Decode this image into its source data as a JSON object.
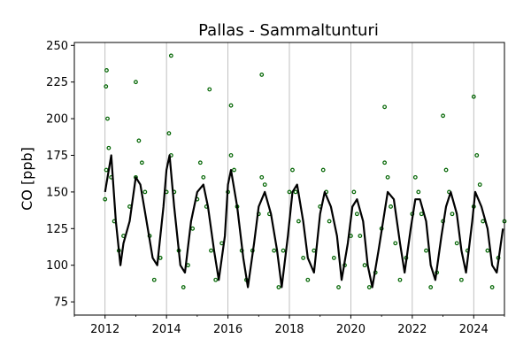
{
  "chart_data": {
    "type": "scatter",
    "title": "Pallas - Sammaltunturi",
    "xlabel": "",
    "ylabel": "CO [ppb]",
    "xlim": [
      2011.0,
      2025.0
    ],
    "ylim": [
      66,
      252
    ],
    "x_ticks": [
      2012,
      2014,
      2016,
      2018,
      2020,
      2022,
      2024
    ],
    "y_ticks": [
      75,
      100,
      125,
      150,
      175,
      200,
      225,
      250
    ],
    "grid": "vertical lines at x ticks",
    "colors": {
      "points": "#006400",
      "fit_line": "#000000",
      "grid": "#b0b0b0"
    },
    "series": [
      {
        "style": "open-circle markers",
        "x": [
          2012.0,
          2012.04,
          2012.08,
          2012.12,
          2012.2,
          2012.3,
          2012.45,
          2012.6,
          2012.8,
          2013.0,
          2013.1,
          2013.2,
          2013.3,
          2013.45,
          2013.6,
          2013.8,
          2014.0,
          2014.08,
          2014.15,
          2014.25,
          2014.4,
          2014.55,
          2014.7,
          2014.85,
          2015.0,
          2015.1,
          2015.2,
          2015.3,
          2015.45,
          2015.6,
          2015.8,
          2016.0,
          2016.1,
          2016.2,
          2016.3,
          2016.45,
          2016.6,
          2016.8,
          2017.0,
          2017.1,
          2017.2,
          2017.35,
          2017.5,
          2017.65,
          2017.8,
          2018.0,
          2018.1,
          2018.2,
          2018.3,
          2018.45,
          2018.6,
          2018.8,
          2019.0,
          2019.1,
          2019.2,
          2019.3,
          2019.45,
          2019.6,
          2019.8,
          2020.0,
          2020.1,
          2020.2,
          2020.3,
          2020.45,
          2020.6,
          2020.8,
          2021.0,
          2021.1,
          2021.2,
          2021.3,
          2021.45,
          2021.6,
          2021.8,
          2022.0,
          2022.1,
          2022.2,
          2022.3,
          2022.45,
          2022.6,
          2022.8,
          2023.0,
          2023.1,
          2023.2,
          2023.3,
          2023.45,
          2023.6,
          2023.8,
          2024.0,
          2024.1,
          2024.2,
          2024.3,
          2024.45,
          2024.6,
          2024.8,
          2025.0,
          2012.05,
          2014.15,
          2017.1,
          2013.0,
          2015.4,
          2021.1,
          2024.0,
          2012.03,
          2016.1,
          2023.0
        ],
        "y": [
          145,
          165,
          200,
          180,
          160,
          130,
          110,
          120,
          140,
          160,
          185,
          170,
          150,
          120,
          90,
          105,
          150,
          190,
          175,
          150,
          110,
          85,
          100,
          125,
          145,
          170,
          160,
          140,
          110,
          90,
          115,
          150,
          175,
          165,
          140,
          110,
          90,
          110,
          135,
          160,
          155,
          135,
          110,
          85,
          110,
          150,
          165,
          150,
          130,
          105,
          90,
          110,
          140,
          165,
          150,
          130,
          105,
          85,
          100,
          120,
          150,
          135,
          120,
          100,
          85,
          95,
          125,
          170,
          160,
          140,
          115,
          90,
          105,
          135,
          160,
          150,
          135,
          110,
          85,
          95,
          130,
          165,
          150,
          135,
          115,
          90,
          110,
          140,
          175,
          155,
          130,
          110,
          85,
          105,
          130,
          233,
          243,
          230,
          225,
          220,
          208,
          215,
          222,
          209,
          202
        ],
        "name": ""
      },
      {
        "style": "smoothed black line",
        "x": [
          2012.0,
          2012.2,
          2012.35,
          2012.5,
          2012.6,
          2012.8,
          2013.0,
          2013.15,
          2013.35,
          2013.55,
          2013.7,
          2013.9,
          2014.0,
          2014.1,
          2014.25,
          2014.45,
          2014.6,
          2014.8,
          2015.0,
          2015.2,
          2015.35,
          2015.55,
          2015.7,
          2015.9,
          2016.0,
          2016.1,
          2016.3,
          2016.5,
          2016.65,
          2016.85,
          2017.0,
          2017.2,
          2017.4,
          2017.6,
          2017.75,
          2017.95,
          2018.1,
          2018.25,
          2018.45,
          2018.6,
          2018.8,
          2019.0,
          2019.15,
          2019.35,
          2019.55,
          2019.7,
          2019.9,
          2020.05,
          2020.2,
          2020.4,
          2020.55,
          2020.7,
          2020.9,
          2021.05,
          2021.2,
          2021.4,
          2021.6,
          2021.75,
          2021.95,
          2022.1,
          2022.25,
          2022.45,
          2022.6,
          2022.75,
          2022.95,
          2023.1,
          2023.25,
          2023.45,
          2023.6,
          2023.75,
          2023.95,
          2024.05,
          2024.25,
          2024.45,
          2024.6,
          2024.75,
          2024.95
        ],
        "y": [
          150,
          175,
          130,
          100,
          115,
          130,
          160,
          155,
          130,
          105,
          100,
          140,
          165,
          175,
          140,
          100,
          95,
          130,
          150,
          155,
          140,
          110,
          90,
          120,
          155,
          165,
          140,
          105,
          85,
          115,
          140,
          150,
          135,
          110,
          85,
          120,
          150,
          155,
          130,
          105,
          95,
          135,
          150,
          140,
          120,
          90,
          115,
          140,
          145,
          130,
          100,
          85,
          110,
          130,
          150,
          145,
          115,
          95,
          125,
          145,
          145,
          130,
          100,
          90,
          120,
          140,
          150,
          135,
          110,
          95,
          130,
          150,
          140,
          125,
          100,
          95,
          125
        ],
        "name": ""
      }
    ]
  }
}
